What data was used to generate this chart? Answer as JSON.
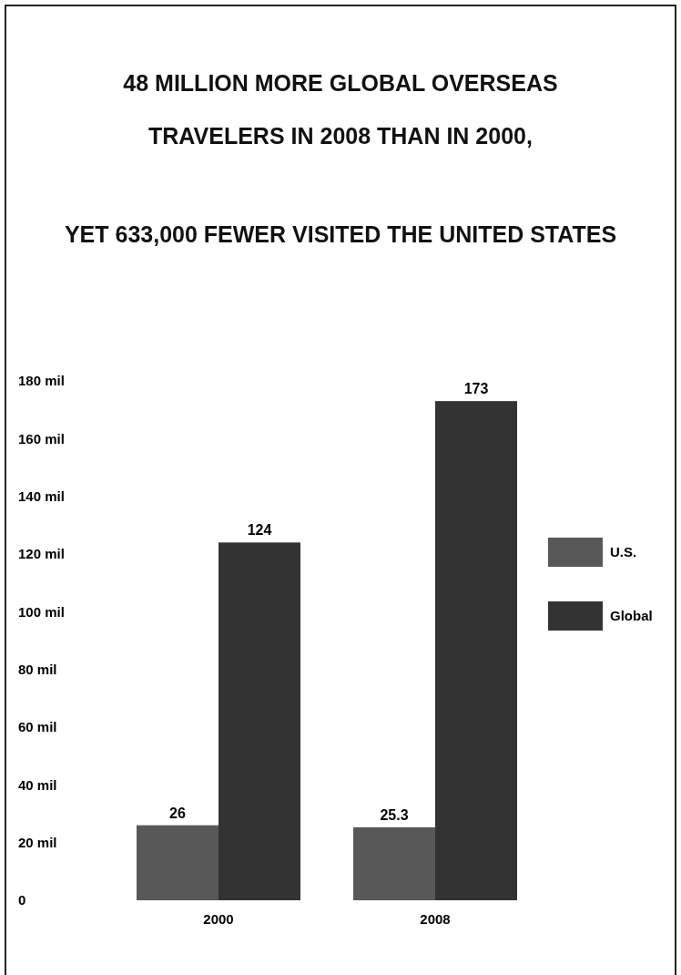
{
  "chart_data": {
    "type": "bar",
    "title": "48 MILLION MORE GLOBAL OVERSEAS\nTRAVELERS IN 2008 THAN IN 2000,\nYET 633,000 FEWER VISITED THE UNITED STATES",
    "categories": [
      "2000",
      "2008"
    ],
    "series": [
      {
        "name": "U.S.",
        "color": "#585858",
        "values": [
          26,
          25.3
        ]
      },
      {
        "name": "Global",
        "color": "#333333",
        "values": [
          124,
          173
        ]
      }
    ],
    "ylim": [
      0,
      180
    ],
    "yticks": [
      0,
      {
        "value": 20,
        "label": "20 mil"
      },
      {
        "value": 40,
        "label": "40 mil"
      },
      {
        "value": 60,
        "label": "60 mil"
      },
      {
        "value": 80,
        "label": "80 mil"
      },
      {
        "value": 100,
        "label": "100 mil"
      },
      {
        "value": 120,
        "label": "120 mil"
      },
      {
        "value": 140,
        "label": "140 mil"
      },
      {
        "value": 160,
        "label": "160 mil"
      },
      {
        "value": 180,
        "label": "180 mil"
      }
    ],
    "data_labels": true,
    "legend": "right"
  }
}
